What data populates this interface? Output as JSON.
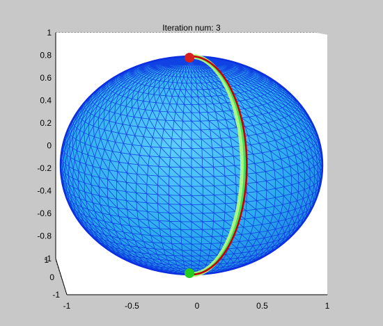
{
  "chart_data": {
    "type": "surface3d",
    "title": "Iteration num: 3",
    "xlabel": "",
    "ylabel": "",
    "zlabel": "",
    "grid": true,
    "x_ticks": [
      "-1",
      "-0.5",
      "0",
      "0.5",
      "1"
    ],
    "y_ticks": [
      "-1",
      "0",
      "1"
    ],
    "z_ticks": [
      "-1",
      "-0.8",
      "-0.6",
      "-0.4",
      "-0.2",
      "0",
      "0.2",
      "0.4",
      "0.6",
      "0.8",
      "1"
    ],
    "xlim": [
      -1,
      1
    ],
    "ylim": [
      -1,
      1
    ],
    "zlim": [
      -1,
      1
    ],
    "surface": {
      "shape": "sphere",
      "radius": 1,
      "mesh": "triangular",
      "fill_color": "#31b6ef",
      "edge_color": "#0b2fe0"
    },
    "highlight_curve": {
      "description": "great-circle meridian",
      "longitude_deg": 25,
      "colors": [
        "#b8ff7a",
        "#3fe05a",
        "#c80000"
      ]
    },
    "markers": [
      {
        "z": 1,
        "color": "#d62020"
      },
      {
        "z": -1,
        "color": "#22cc22"
      }
    ],
    "colors": {
      "figure_background": "#c8c8c8",
      "axes_background": "#ffffff",
      "grid": "#000000"
    }
  }
}
